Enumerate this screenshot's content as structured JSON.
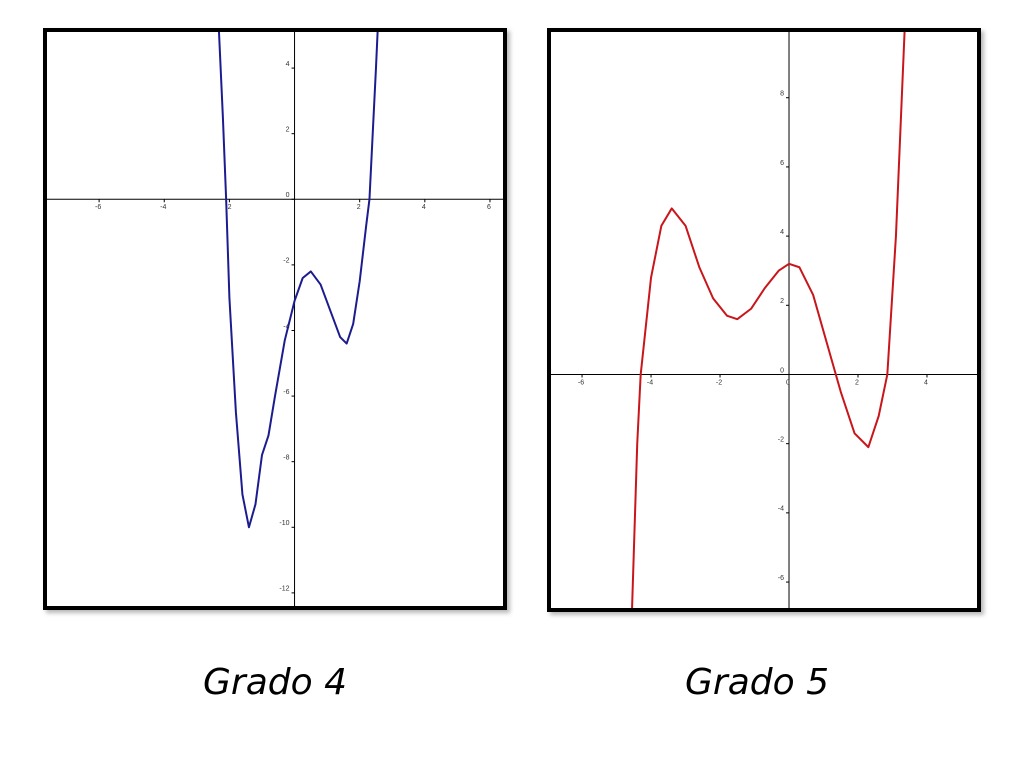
{
  "chart_data": [
    {
      "type": "line",
      "title": "Grado 4",
      "color": "#1c1c8f",
      "grid": false,
      "xlim": [
        -7.6,
        6.4
      ],
      "ylim": [
        -12.4,
        5.1
      ],
      "xticks": [
        -6,
        -4,
        -2,
        2,
        4,
        6
      ],
      "yticks": [
        4,
        2,
        0,
        -2,
        -4,
        -6,
        -8,
        -10,
        -12
      ],
      "x": [
        -2.32,
        -2.2,
        -2.1,
        -2.0,
        -1.8,
        -1.6,
        -1.4,
        -1.2,
        -1.0,
        -0.8,
        -0.6,
        -0.3,
        0,
        0.25,
        0.5,
        0.8,
        1.1,
        1.4,
        1.6,
        1.8,
        2.0,
        2.2,
        2.3,
        2.4,
        2.5,
        2.55
      ],
      "values": [
        5.1,
        2.5,
        0,
        -3,
        -6.5,
        -9,
        -10,
        -9.3,
        -7.8,
        -7.2,
        -6,
        -4.3,
        -3.1,
        -2.4,
        -2.2,
        -2.6,
        -3.4,
        -4.2,
        -4.4,
        -3.8,
        -2.5,
        -0.8,
        0,
        2,
        4,
        5.1
      ]
    },
    {
      "type": "line",
      "title": "Grado 5",
      "color": "#c8161b",
      "grid": false,
      "xlim": [
        -6.9,
        5.45
      ],
      "ylim": [
        -6.75,
        9.9
      ],
      "xticks": [
        -6,
        -4,
        -2,
        0,
        2,
        4
      ],
      "yticks": [
        8,
        6,
        4,
        2,
        0,
        -2,
        -4,
        -6
      ],
      "x": [
        -4.55,
        -4.4,
        -4.3,
        -4.0,
        -3.7,
        -3.4,
        -3.0,
        -2.6,
        -2.2,
        -1.8,
        -1.5,
        -1.1,
        -0.7,
        -0.3,
        0,
        0.3,
        0.7,
        1.1,
        1.5,
        1.9,
        2.3,
        2.6,
        2.85,
        3.1,
        3.35
      ],
      "values": [
        -6.75,
        -2,
        0,
        2.8,
        4.3,
        4.8,
        4.3,
        3.1,
        2.2,
        1.7,
        1.6,
        1.9,
        2.5,
        3.0,
        3.2,
        3.1,
        2.3,
        0.9,
        -0.5,
        -1.7,
        -2.1,
        -1.2,
        0,
        4,
        9.9
      ]
    }
  ]
}
